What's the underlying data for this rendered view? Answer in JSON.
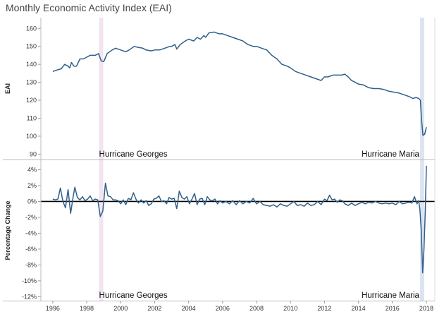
{
  "chart_data": [
    {
      "type": "line",
      "title": "Monthly Economic Activity Index (EAI)",
      "ylabel": "EAI",
      "ylim": [
        87,
        166
      ],
      "yticks": [
        90,
        100,
        110,
        120,
        130,
        140,
        150,
        160
      ],
      "xlim": [
        1995.3,
        2018.5
      ],
      "color": "#2f5f8a",
      "series": [
        {
          "points": [
            [
              1996.0,
              136
            ],
            [
              1996.3,
              137
            ],
            [
              1996.5,
              137.5
            ],
            [
              1996.7,
              140
            ],
            [
              1996.9,
              139
            ],
            [
              1997.0,
              138
            ],
            [
              1997.1,
              141
            ],
            [
              1997.25,
              139
            ],
            [
              1997.4,
              139
            ],
            [
              1997.6,
              143
            ],
            [
              1997.8,
              143
            ],
            [
              1998.0,
              144
            ],
            [
              1998.2,
              145
            ],
            [
              1998.5,
              145
            ],
            [
              1998.7,
              146
            ],
            [
              1998.85,
              142
            ],
            [
              1999.0,
              141.5
            ],
            [
              1999.2,
              146
            ],
            [
              1999.5,
              148
            ],
            [
              1999.7,
              149
            ],
            [
              2000.0,
              148
            ],
            [
              2000.3,
              147
            ],
            [
              2000.5,
              148
            ],
            [
              2000.8,
              150
            ],
            [
              2001.0,
              149.5
            ],
            [
              2001.3,
              149
            ],
            [
              2001.5,
              148
            ],
            [
              2001.8,
              147.5
            ],
            [
              2002.0,
              148
            ],
            [
              2002.3,
              148
            ],
            [
              2002.6,
              149
            ],
            [
              2002.9,
              150
            ],
            [
              2003.0,
              150
            ],
            [
              2003.2,
              151
            ],
            [
              2003.3,
              148.5
            ],
            [
              2003.5,
              151
            ],
            [
              2003.8,
              153
            ],
            [
              2004.0,
              154
            ],
            [
              2004.3,
              153
            ],
            [
              2004.5,
              155
            ],
            [
              2004.7,
              154
            ],
            [
              2004.9,
              156
            ],
            [
              2005.0,
              155
            ],
            [
              2005.2,
              157.5
            ],
            [
              2005.5,
              158
            ],
            [
              2005.8,
              157
            ],
            [
              2006.0,
              157
            ],
            [
              2006.3,
              156
            ],
            [
              2006.6,
              155
            ],
            [
              2006.9,
              154
            ],
            [
              2007.2,
              153
            ],
            [
              2007.5,
              151
            ],
            [
              2007.8,
              150
            ],
            [
              2008.0,
              150
            ],
            [
              2008.3,
              149
            ],
            [
              2008.6,
              148
            ],
            [
              2008.9,
              145
            ],
            [
              2009.2,
              143
            ],
            [
              2009.5,
              140
            ],
            [
              2009.8,
              139
            ],
            [
              2010.0,
              138
            ],
            [
              2010.3,
              136
            ],
            [
              2010.6,
              135
            ],
            [
              2010.9,
              134
            ],
            [
              2011.2,
              133
            ],
            [
              2011.5,
              132
            ],
            [
              2011.8,
              131
            ],
            [
              2012.0,
              133
            ],
            [
              2012.2,
              133
            ],
            [
              2012.5,
              134
            ],
            [
              2012.8,
              134
            ],
            [
              2013.0,
              134
            ],
            [
              2013.2,
              134.5
            ],
            [
              2013.4,
              133
            ],
            [
              2013.6,
              131
            ],
            [
              2013.8,
              130
            ],
            [
              2014.0,
              129
            ],
            [
              2014.3,
              128.5
            ],
            [
              2014.6,
              127
            ],
            [
              2014.9,
              126.5
            ],
            [
              2015.2,
              126.5
            ],
            [
              2015.5,
              126
            ],
            [
              2015.8,
              125
            ],
            [
              2016.1,
              124.5
            ],
            [
              2016.4,
              124
            ],
            [
              2016.7,
              123
            ],
            [
              2017.0,
              122
            ],
            [
              2017.2,
              121
            ],
            [
              2017.4,
              121.5
            ],
            [
              2017.55,
              121
            ],
            [
              2017.65,
              120
            ],
            [
              2017.72,
              109
            ],
            [
              2017.8,
              100.5
            ],
            [
              2017.9,
              101
            ],
            [
              2018.0,
              105
            ]
          ]
        }
      ],
      "annotations": [
        {
          "text": "Hurricane Georges",
          "x": 1998.85
        },
        {
          "text": "Hurricane Maria",
          "x": 2017.75
        }
      ],
      "shading": [
        {
          "event": "Hurricane Georges",
          "x": 1998.85,
          "color": "#f3e4f1"
        },
        {
          "event": "Hurricane Maria",
          "x": 2017.75,
          "color": "#dde4f1"
        }
      ]
    },
    {
      "type": "line",
      "ylabel": "Percentage Change",
      "ylim": [
        -12.5,
        5.2
      ],
      "yticks": [
        -12,
        -10,
        -8,
        -6,
        -4,
        -2,
        0,
        2,
        4
      ],
      "ytick_labels": [
        "-12%",
        "-10%",
        "-8%",
        "-6%",
        "-4%",
        "-2%",
        "0%",
        "2%",
        "4%"
      ],
      "xticks": [
        1996,
        1998,
        2000,
        2002,
        2004,
        2006,
        2008,
        2010,
        2012,
        2014,
        2016,
        2018
      ],
      "xlim": [
        1995.3,
        2018.5
      ],
      "zero_line": true,
      "color": "#2f5f8a",
      "series": [
        {
          "points": [
            [
              1996.0,
              0.3
            ],
            [
              1996.15,
              0.2
            ],
            [
              1996.3,
              0.3
            ],
            [
              1996.45,
              1.7
            ],
            [
              1996.6,
              0
            ],
            [
              1996.75,
              -0.8
            ],
            [
              1996.9,
              1.5
            ],
            [
              1997.05,
              -1.5
            ],
            [
              1997.2,
              0.6
            ],
            [
              1997.3,
              1.8
            ],
            [
              1997.45,
              0.5
            ],
            [
              1997.6,
              0.2
            ],
            [
              1997.75,
              0.6
            ],
            [
              1997.9,
              0.1
            ],
            [
              1998.05,
              0.3
            ],
            [
              1998.2,
              0.7
            ],
            [
              1998.35,
              0.1
            ],
            [
              1998.5,
              0.3
            ],
            [
              1998.65,
              0.2
            ],
            [
              1998.8,
              -1.9
            ],
            [
              1998.95,
              -1.2
            ],
            [
              1999.1,
              2.3
            ],
            [
              1999.25,
              0.7
            ],
            [
              1999.4,
              0.6
            ],
            [
              1999.55,
              0.2
            ],
            [
              1999.7,
              0.2
            ],
            [
              1999.85,
              0.1
            ],
            [
              2000.0,
              -0.3
            ],
            [
              2000.15,
              0.2
            ],
            [
              2000.3,
              -0.4
            ],
            [
              2000.45,
              0.4
            ],
            [
              2000.6,
              0.2
            ],
            [
              2000.75,
              1.1
            ],
            [
              2000.9,
              0.3
            ],
            [
              2001.05,
              -0.2
            ],
            [
              2001.2,
              0.2
            ],
            [
              2001.35,
              -0.2
            ],
            [
              2001.5,
              0.1
            ],
            [
              2001.65,
              -0.5
            ],
            [
              2001.8,
              -0.3
            ],
            [
              2001.95,
              0.3
            ],
            [
              2002.1,
              0.4
            ],
            [
              2002.25,
              0.7
            ],
            [
              2002.4,
              0
            ],
            [
              2002.55,
              0.1
            ],
            [
              2002.7,
              -0.3
            ],
            [
              2002.85,
              0.5
            ],
            [
              2003.0,
              0.3
            ],
            [
              2003.15,
              0.4
            ],
            [
              2003.3,
              -0.9
            ],
            [
              2003.45,
              1.3
            ],
            [
              2003.6,
              0.5
            ],
            [
              2003.75,
              0.3
            ],
            [
              2003.9,
              0.6
            ],
            [
              2004.05,
              -0.3
            ],
            [
              2004.2,
              0.3
            ],
            [
              2004.35,
              1.0
            ],
            [
              2004.5,
              -0.4
            ],
            [
              2004.65,
              0.3
            ],
            [
              2004.8,
              0.4
            ],
            [
              2004.95,
              -0.4
            ],
            [
              2005.1,
              0.6
            ],
            [
              2005.25,
              0.2
            ],
            [
              2005.4,
              0.1
            ],
            [
              2005.55,
              0.3
            ],
            [
              2005.7,
              -0.3
            ],
            [
              2005.85,
              0.1
            ],
            [
              2006.0,
              -0.2
            ],
            [
              2006.2,
              0
            ],
            [
              2006.4,
              -0.3
            ],
            [
              2006.6,
              0.1
            ],
            [
              2006.8,
              -0.4
            ],
            [
              2007.0,
              0.1
            ],
            [
              2007.2,
              -0.3
            ],
            [
              2007.4,
              0
            ],
            [
              2007.6,
              -0.2
            ],
            [
              2007.8,
              0.4
            ],
            [
              2008.0,
              -0.3
            ],
            [
              2008.2,
              0
            ],
            [
              2008.4,
              -0.4
            ],
            [
              2008.6,
              -0.5
            ],
            [
              2008.8,
              -0.6
            ],
            [
              2009.0,
              -0.4
            ],
            [
              2009.2,
              -0.7
            ],
            [
              2009.4,
              -0.3
            ],
            [
              2009.6,
              -0.5
            ],
            [
              2009.8,
              -0.6
            ],
            [
              2010.0,
              -0.3
            ],
            [
              2010.2,
              0
            ],
            [
              2010.4,
              -0.5
            ],
            [
              2010.6,
              -0.4
            ],
            [
              2010.8,
              -0.6
            ],
            [
              2011.0,
              -0.2
            ],
            [
              2011.2,
              -0.5
            ],
            [
              2011.4,
              -0.4
            ],
            [
              2011.6,
              0
            ],
            [
              2011.8,
              -0.4
            ],
            [
              2012.0,
              0.3
            ],
            [
              2012.15,
              0.1
            ],
            [
              2012.3,
              0.8
            ],
            [
              2012.45,
              0.2
            ],
            [
              2012.6,
              0.3
            ],
            [
              2012.75,
              -0.1
            ],
            [
              2012.9,
              0.2
            ],
            [
              2013.05,
              0.1
            ],
            [
              2013.2,
              -0.3
            ],
            [
              2013.4,
              -0.5
            ],
            [
              2013.6,
              -0.2
            ],
            [
              2013.8,
              -0.5
            ],
            [
              2014.0,
              -0.3
            ],
            [
              2014.2,
              -0.1
            ],
            [
              2014.4,
              -0.3
            ],
            [
              2014.6,
              -0.1
            ],
            [
              2014.8,
              -0.2
            ],
            [
              2015.0,
              0
            ],
            [
              2015.2,
              -0.2
            ],
            [
              2015.4,
              -0.3
            ],
            [
              2015.6,
              -0.2
            ],
            [
              2015.8,
              -0.3
            ],
            [
              2016.0,
              -0.2
            ],
            [
              2016.2,
              -0.4
            ],
            [
              2016.4,
              0
            ],
            [
              2016.6,
              -0.3
            ],
            [
              2016.8,
              -0.2
            ],
            [
              2017.0,
              -0.1
            ],
            [
              2017.15,
              -0.2
            ],
            [
              2017.3,
              0.6
            ],
            [
              2017.45,
              -0.3
            ],
            [
              2017.55,
              0.1
            ],
            [
              2017.62,
              -1.0
            ],
            [
              2017.7,
              -3.5
            ],
            [
              2017.78,
              -9.0
            ],
            [
              2017.86,
              -6.0
            ],
            [
              2017.94,
              -1.0
            ],
            [
              2018.0,
              4.5
            ]
          ]
        }
      ],
      "annotations": [
        {
          "text": "Hurricane Georges",
          "x": 1998.85
        },
        {
          "text": "Hurricane Maria",
          "x": 2017.75
        }
      ],
      "shading": [
        {
          "event": "Hurricane Georges",
          "x": 1998.85,
          "color": "#f3e4f1"
        },
        {
          "event": "Hurricane Maria",
          "x": 2017.75,
          "color": "#dde4f1"
        }
      ]
    }
  ]
}
